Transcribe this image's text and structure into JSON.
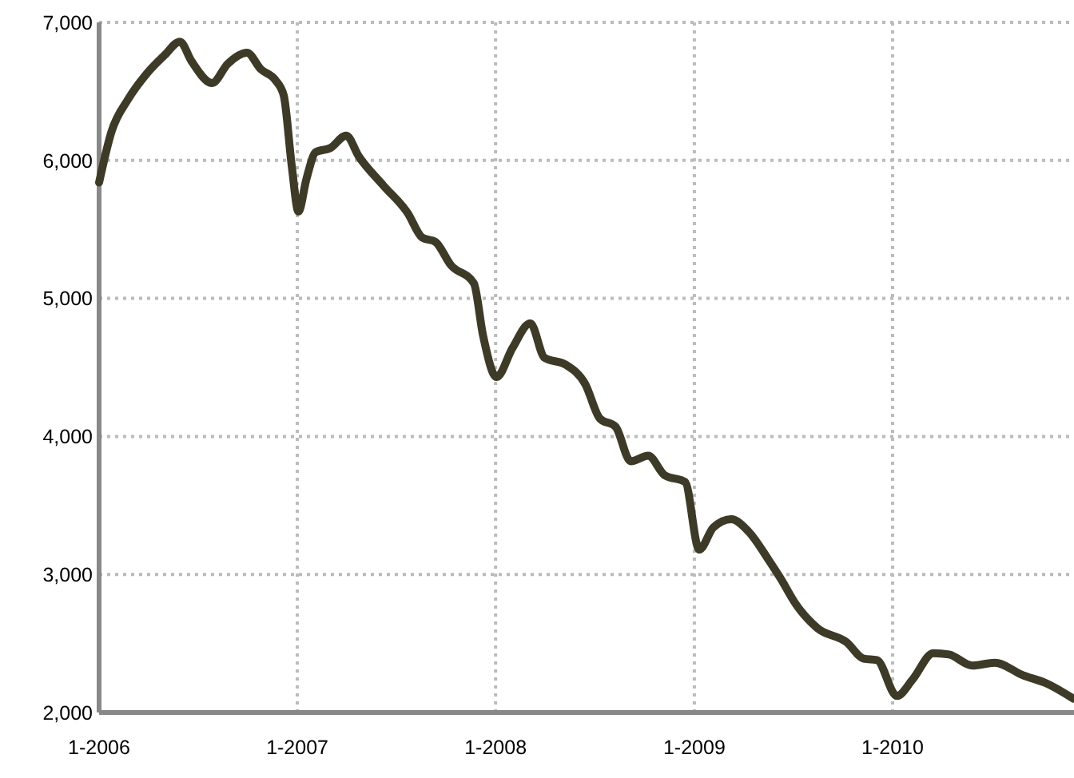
{
  "chart_data": {
    "type": "line",
    "x": [
      "2006-01-01",
      "2006-01-24",
      "2006-02-23",
      "2006-03-30",
      "2006-05-01",
      "2006-05-30",
      "2006-06-20",
      "2006-07-28",
      "2006-08-26",
      "2006-09-30",
      "2006-10-26",
      "2006-11-22",
      "2006-12-07",
      "2006-12-22",
      "2007-01-03",
      "2007-01-18",
      "2007-02-04",
      "2007-03-03",
      "2007-04-01",
      "2007-04-24",
      "2007-06-08",
      "2007-07-23",
      "2007-08-19",
      "2007-09-12",
      "2007-10-11",
      "2007-11-22",
      "2007-12-09",
      "2008-01-03",
      "2008-02-01",
      "2008-03-05",
      "2008-03-31",
      "2008-05-09",
      "2008-06-14",
      "2008-07-11",
      "2008-08-09",
      "2008-09-06",
      "2008-10-08",
      "2008-11-07",
      "2008-12-15",
      "2009-01-10",
      "2009-02-05",
      "2009-03-10",
      "2009-04-11",
      "2009-05-17",
      "2009-06-09",
      "2009-07-06",
      "2009-08-16",
      "2009-10-08",
      "2009-11-09",
      "2009-12-03",
      "2010-01-09",
      "2010-02-07",
      "2010-03-17",
      "2010-04-15",
      "2010-05-28",
      "2010-07-08",
      "2010-08-29",
      "2010-10-12",
      "2010-11-30"
    ],
    "series": [
      {
        "color": "#3d3a28",
        "values": [
          5840,
          6210,
          6440,
          6630,
          6760,
          6860,
          6720,
          6560,
          6700,
          6780,
          6660,
          6580,
          6470,
          5950,
          5630,
          5870,
          6060,
          6090,
          6180,
          6030,
          5820,
          5620,
          5440,
          5410,
          5240,
          5110,
          4730,
          4430,
          4640,
          4820,
          4570,
          4520,
          4380,
          4130,
          4070,
          3820,
          3860,
          3720,
          3670,
          3180,
          3340,
          3400,
          3310,
          3110,
          2970,
          2790,
          2610,
          2510,
          2390,
          2380,
          2120,
          2240,
          2430,
          2420,
          2340,
          2360,
          2270,
          2210,
          2100
        ]
      }
    ],
    "xlim": [
      "2006-01-01",
      "2010-12-01"
    ],
    "xticks": [
      {
        "value": "2006-01-01",
        "label": "1-2006"
      },
      {
        "value": "2007-01-01",
        "label": "1-2007"
      },
      {
        "value": "2008-01-01",
        "label": "1-2008"
      },
      {
        "value": "2009-01-01",
        "label": "1-2009"
      },
      {
        "value": "2010-01-01",
        "label": "1-2010"
      }
    ],
    "ylim": [
      2000,
      7000
    ],
    "yticks": [
      {
        "value": 2000,
        "label": "2,000"
      },
      {
        "value": 3000,
        "label": "3,000"
      },
      {
        "value": 4000,
        "label": "4,000"
      },
      {
        "value": 5000,
        "label": "5,000"
      },
      {
        "value": 6000,
        "label": "6,000"
      },
      {
        "value": 7000,
        "label": "7,000"
      }
    ],
    "grid": true,
    "marker": "none",
    "line_style": "solid"
  }
}
